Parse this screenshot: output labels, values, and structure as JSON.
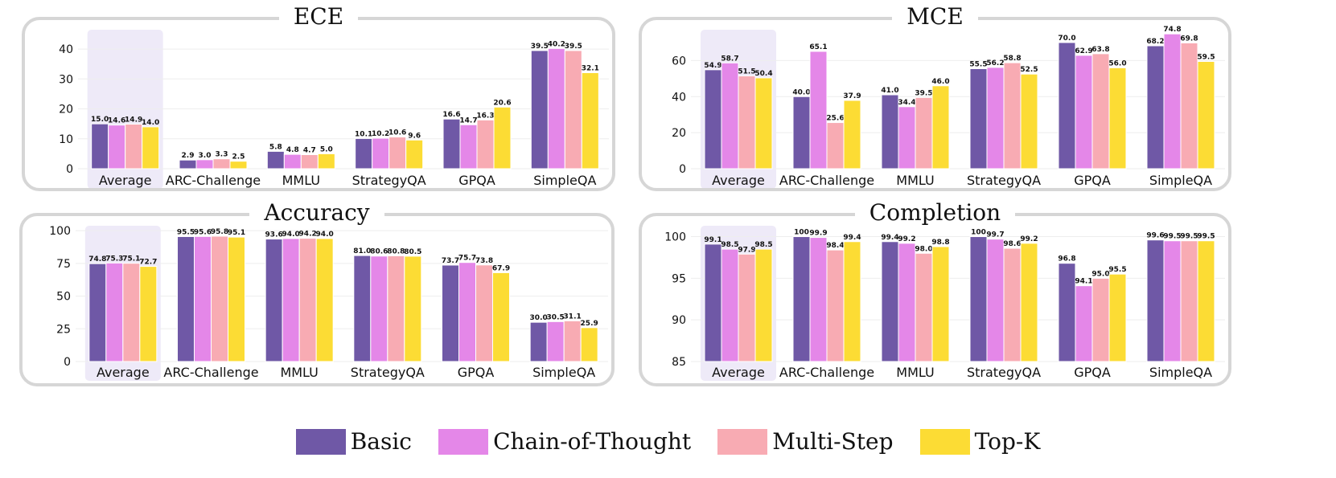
{
  "legend": [
    {
      "name": "Basic",
      "color": "#6f58a6"
    },
    {
      "name": "Chain-of-Thought",
      "color": "#e487e8"
    },
    {
      "name": "Multi-Step",
      "color": "#f8abb3"
    },
    {
      "name": "Top-K",
      "color": "#fcdc34"
    }
  ],
  "chart_data": [
    {
      "type": "bar",
      "title": "ECE",
      "categories": [
        "Average",
        "ARC-Challenge",
        "MMLU",
        "StrategyQA",
        "GPQA",
        "SimpleQA"
      ],
      "ylim": [
        0,
        47
      ],
      "yticks": [
        0,
        10,
        20,
        30,
        40
      ],
      "highlight": "Average",
      "series": [
        {
          "name": "Basic",
          "values": [
            15.0,
            2.9,
            5.8,
            10.1,
            16.6,
            39.5
          ],
          "labels": [
            "15.0",
            "2.9",
            "5.8",
            "10.1",
            "16.6",
            "39.5"
          ]
        },
        {
          "name": "Chain-of-Thought",
          "values": [
            14.6,
            3.0,
            4.8,
            10.2,
            14.7,
            40.2
          ],
          "labels": [
            "14.6",
            "3.0",
            "4.8",
            "10.2",
            "14.7",
            "40.2"
          ]
        },
        {
          "name": "Multi-Step",
          "values": [
            14.9,
            3.3,
            4.7,
            10.6,
            16.3,
            39.5
          ],
          "labels": [
            "14.9",
            "3.3",
            "4.7",
            "10.6",
            "16.3",
            "39.5"
          ]
        },
        {
          "name": "Top-K",
          "values": [
            14.0,
            2.5,
            5.0,
            9.6,
            20.6,
            32.1
          ],
          "labels": [
            "14.0",
            "2.5",
            "5.0",
            "9.6",
            "20.6",
            "32.1"
          ]
        }
      ]
    },
    {
      "type": "bar",
      "title": "MCE",
      "categories": [
        "Average",
        "ARC-Challenge",
        "MMLU",
        "StrategyQA",
        "GPQA",
        "SimpleQA"
      ],
      "ylim": [
        0,
        78
      ],
      "yticks": [
        0,
        20,
        40,
        60
      ],
      "highlight": "Average",
      "series": [
        {
          "name": "Basic",
          "values": [
            54.9,
            40.0,
            41.0,
            55.5,
            70.0,
            68.2
          ],
          "labels": [
            "54.9",
            "40.0",
            "41.0",
            "55.5",
            "70.0",
            "68.2"
          ]
        },
        {
          "name": "Chain-of-Thought",
          "values": [
            58.7,
            65.1,
            34.4,
            56.2,
            62.9,
            74.8
          ],
          "labels": [
            "58.7",
            "65.1",
            "34.4",
            "56.2",
            "62.9",
            "74.8"
          ]
        },
        {
          "name": "Multi-Step",
          "values": [
            51.5,
            25.6,
            39.5,
            58.8,
            63.8,
            69.8
          ],
          "labels": [
            "51.5",
            "25.6",
            "39.5",
            "58.8",
            "63.8",
            "69.8"
          ]
        },
        {
          "name": "Top-K",
          "values": [
            50.4,
            37.9,
            46.0,
            52.5,
            56.0,
            59.5
          ],
          "labels": [
            "50.4",
            "37.9",
            "46.0",
            "52.5",
            "56.0",
            "59.5"
          ]
        }
      ]
    },
    {
      "type": "bar",
      "title": "Accuracy",
      "categories": [
        "Average",
        "ARC-Challenge",
        "MMLU",
        "StrategyQA",
        "GPQA",
        "SimpleQA"
      ],
      "ylim": [
        0,
        105
      ],
      "yticks": [
        0,
        25,
        50,
        75,
        100
      ],
      "highlight": "Average",
      "series": [
        {
          "name": "Basic",
          "values": [
            74.8,
            95.5,
            93.6,
            81.0,
            73.7,
            30.0
          ],
          "labels": [
            "74.8",
            "95.5",
            "93.6",
            "81.0",
            "73.7",
            "30.0"
          ]
        },
        {
          "name": "Chain-of-Thought",
          "values": [
            75.3,
            95.6,
            94.0,
            80.6,
            75.7,
            30.5
          ],
          "labels": [
            "75.3",
            "95.6",
            "94.0",
            "80.6",
            "75.7",
            "30.5"
          ]
        },
        {
          "name": "Multi-Step",
          "values": [
            75.1,
            95.8,
            94.2,
            80.8,
            73.8,
            31.1
          ],
          "labels": [
            "75.1",
            "95.8",
            "94.2",
            "80.8",
            "73.8",
            "31.1"
          ]
        },
        {
          "name": "Top-K",
          "values": [
            72.7,
            95.1,
            94.0,
            80.5,
            67.9,
            25.9
          ],
          "labels": [
            "72.7",
            "95.1",
            "94.0",
            "80.5",
            "67.9",
            "25.9"
          ]
        }
      ]
    },
    {
      "type": "bar",
      "title": "Completion",
      "categories": [
        "Average",
        "ARC-Challenge",
        "MMLU",
        "StrategyQA",
        "GPQA",
        "SimpleQA"
      ],
      "ylim": [
        85,
        101.5
      ],
      "yticks": [
        85,
        90,
        95,
        100
      ],
      "highlight": "Average",
      "series": [
        {
          "name": "Basic",
          "values": [
            99.1,
            100,
            99.4,
            100,
            96.8,
            99.6
          ],
          "labels": [
            "99.1",
            "100",
            "99.4",
            "100",
            "96.8",
            "99.6"
          ]
        },
        {
          "name": "Chain-of-Thought",
          "values": [
            98.5,
            99.9,
            99.2,
            99.7,
            94.1,
            99.5
          ],
          "labels": [
            "98.5",
            "99.9",
            "99.2",
            "99.7",
            "94.1",
            "99.5"
          ]
        },
        {
          "name": "Multi-Step",
          "values": [
            97.9,
            98.4,
            98.0,
            98.6,
            95.0,
            99.5
          ],
          "labels": [
            "97.9",
            "98.4",
            "98.0",
            "98.6",
            "95.0",
            "99.5"
          ]
        },
        {
          "name": "Top-K",
          "values": [
            98.5,
            99.4,
            98.8,
            99.2,
            95.5,
            99.5
          ],
          "labels": [
            "98.5",
            "99.4",
            "98.8",
            "99.2",
            "95.5",
            "99.5"
          ]
        }
      ]
    }
  ]
}
